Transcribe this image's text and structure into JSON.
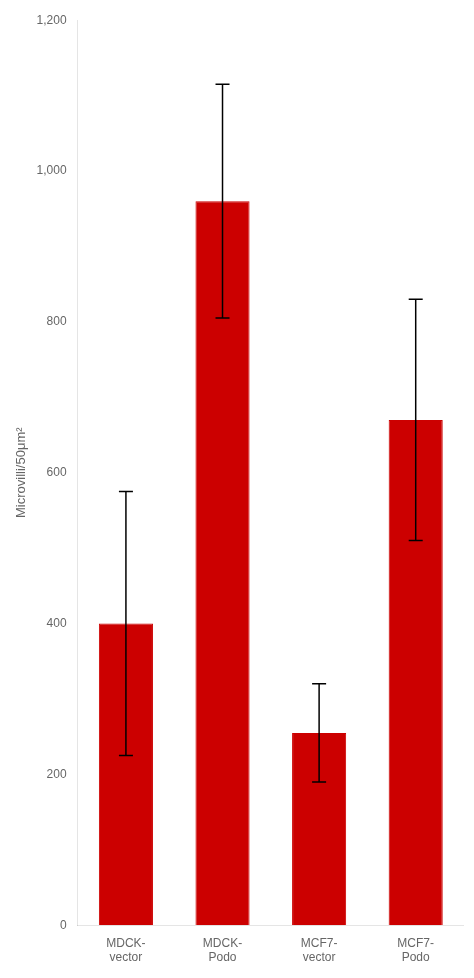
{
  "chart_data": {
    "type": "bar",
    "categories": [
      "MDCK-\nvector",
      "MDCK-\nPodo",
      "MCF7-\nvector",
      "MCF7-\nPodo"
    ],
    "values": [
      400,
      960,
      255,
      670
    ],
    "errors": [
      175,
      155,
      65,
      160
    ],
    "color": "#cc0000",
    "ylabel": "Microvilli/50μm²",
    "ylim": [
      0,
      1200
    ],
    "yticks": [
      0,
      200,
      400,
      600,
      800,
      1000,
      1200
    ],
    "grid": false
  }
}
